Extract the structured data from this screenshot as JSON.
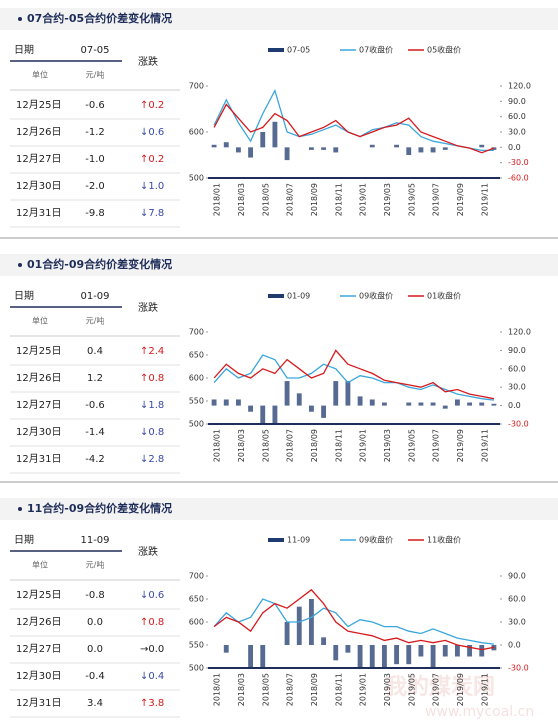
{
  "sections": [
    {
      "title": "07合约-05合约价差变化情况",
      "table": {
        "header": [
          "日期",
          "07-05",
          "涨跌"
        ],
        "units": [
          "单位",
          "元/吨"
        ],
        "rows": [
          [
            "12月25日",
            "-0.6",
            "↑0.2"
          ],
          [
            "12月26日",
            "-1.2",
            "↓0.6"
          ],
          [
            "12月27日",
            "-1.0",
            "↑0.2"
          ],
          [
            "12月30日",
            "-2.0",
            "↓1.0"
          ],
          [
            "12月31日",
            "-9.8",
            "↓7.8"
          ]
        ]
      }
    },
    {
      "title": "01合约-09合约价差变化情况",
      "table": {
        "header": [
          "日期",
          "01-09",
          "涨跌"
        ],
        "units": [
          "单位",
          "元/吨"
        ],
        "rows": [
          [
            "12月25日",
            "0.4",
            "↑2.4"
          ],
          [
            "12月26日",
            "1.2",
            "↑0.8"
          ],
          [
            "12月27日",
            "-0.6",
            "↓1.8"
          ],
          [
            "12月30日",
            "-1.4",
            "↓0.8"
          ],
          [
            "12月31日",
            "-4.2",
            "↓2.8"
          ]
        ]
      }
    },
    {
      "title": "11合约-09合约价差变化情况",
      "table": {
        "header": [
          "日期",
          "11-09",
          "涨跌"
        ],
        "units": [
          "单位",
          "元/吨"
        ],
        "rows": [
          [
            "12月25日",
            "-0.8",
            "↓0.6"
          ],
          [
            "12月26日",
            "0.0",
            "↑0.8"
          ],
          [
            "12月27日",
            "0.0",
            "→0.0"
          ],
          [
            "12月30日",
            "-0.4",
            "↓0.4"
          ],
          [
            "12月31日",
            "3.4",
            "↑3.8"
          ]
        ]
      }
    }
  ],
  "chart_data": [
    {
      "type": "combo",
      "categories": [
        "2018/01",
        null,
        "2018/03",
        null,
        "2018/05",
        null,
        "2018/07",
        null,
        "2018/09",
        null,
        "2018/11",
        null,
        "2019/01",
        null,
        "2019/03",
        null,
        "2019/05",
        null,
        "2019/07",
        null,
        "2019/09",
        null,
        "2019/11",
        null
      ],
      "ylim": [
        500,
        700
      ],
      "yticks": [
        500,
        600,
        700
      ],
      "y2lim": [
        -60,
        120
      ],
      "y2ticks": [
        {
          "value": -60,
          "label": "-60.0"
        },
        {
          "value": -30,
          "label": "-30.0"
        },
        {
          "value": 0,
          "label": "0.0"
        },
        {
          "value": 30,
          "label": "30.0"
        },
        {
          "value": 60,
          "label": "60.0"
        },
        {
          "value": 90,
          "label": "90.0"
        },
        {
          "value": 120,
          "label": "120.0"
        }
      ],
      "series": [
        {
          "name": "07-05",
          "color": "#1f3a6e",
          "type": "bar",
          "axis": "y2",
          "values": [
            5,
            10,
            -10,
            -20,
            30,
            50,
            -25,
            0,
            -5,
            -5,
            -10,
            0,
            0,
            5,
            0,
            5,
            -15,
            -10,
            -10,
            -5,
            0,
            0,
            5,
            -5
          ]
        },
        {
          "name": "07收盘价",
          "color": "#3aa6dd",
          "type": "line",
          "values": [
            615,
            670,
            620,
            580,
            640,
            690,
            600,
            590,
            595,
            605,
            615,
            600,
            590,
            605,
            610,
            620,
            615,
            590,
            580,
            575,
            570,
            565,
            560,
            560
          ]
        },
        {
          "name": "05收盘价",
          "color": "#d7191c",
          "type": "line",
          "values": [
            610,
            660,
            630,
            600,
            610,
            640,
            625,
            590,
            600,
            610,
            625,
            600,
            590,
            600,
            610,
            615,
            630,
            600,
            590,
            580,
            570,
            565,
            555,
            565
          ]
        }
      ]
    },
    {
      "type": "combo",
      "categories": [
        "2018/01",
        null,
        "2018/03",
        null,
        "2018/05",
        null,
        "2018/07",
        null,
        "2018/09",
        null,
        "2018/11",
        null,
        "2019/01",
        null,
        "2019/03",
        null,
        "2019/05",
        null,
        "2019/07",
        null,
        "2019/09",
        null,
        "2019/11",
        null
      ],
      "ylim": [
        500,
        700
      ],
      "yticks": [
        500,
        550,
        600,
        650,
        700
      ],
      "y2lim": [
        -30,
        120
      ],
      "y2ticks": [
        {
          "value": -30,
          "label": "-30.0"
        },
        {
          "value": 0,
          "label": "0.0"
        },
        {
          "value": 30,
          "label": "30.0"
        },
        {
          "value": 60,
          "label": "60.0"
        },
        {
          "value": 90,
          "label": "90.0"
        },
        {
          "value": 120,
          "label": "120.0"
        }
      ],
      "series": [
        {
          "name": "01-09",
          "color": "#1f3a6e",
          "type": "bar",
          "axis": "y2",
          "values": [
            10,
            10,
            10,
            -10,
            -30,
            -30,
            40,
            20,
            -10,
            -20,
            40,
            40,
            15,
            10,
            5,
            0,
            5,
            5,
            5,
            -5,
            10,
            5,
            5,
            3
          ]
        },
        {
          "name": "09收盘价",
          "color": "#3aa6dd",
          "type": "line",
          "values": [
            590,
            620,
            600,
            610,
            650,
            640,
            600,
            600,
            610,
            630,
            620,
            590,
            605,
            600,
            590,
            590,
            580,
            575,
            585,
            575,
            565,
            560,
            555,
            552
          ]
        },
        {
          "name": "01收盘价",
          "color": "#d7191c",
          "type": "line",
          "values": [
            600,
            630,
            610,
            600,
            620,
            610,
            640,
            620,
            600,
            610,
            660,
            630,
            620,
            610,
            595,
            590,
            585,
            580,
            590,
            570,
            575,
            565,
            560,
            555
          ]
        }
      ]
    },
    {
      "type": "combo",
      "categories": [
        "2018/01",
        null,
        "2018/03",
        null,
        "2018/05",
        null,
        "2018/07",
        null,
        "2018/09",
        null,
        "2018/11",
        null,
        "2019/01",
        null,
        "2019/03",
        null,
        "2019/05",
        null,
        "2019/07",
        null,
        "2019/09",
        null,
        "2019/11",
        null
      ],
      "ylim": [
        500,
        700
      ],
      "yticks": [
        500,
        550,
        600,
        650,
        700
      ],
      "y2lim": [
        -30,
        90
      ],
      "y2ticks": [
        {
          "value": -30,
          "label": "-30.0"
        },
        {
          "value": 0,
          "label": "0.0"
        },
        {
          "value": 30,
          "label": "30.0"
        },
        {
          "value": 60,
          "label": "60.0"
        },
        {
          "value": 90,
          "label": "90.0"
        }
      ],
      "series": [
        {
          "name": "11-09",
          "color": "#1f3a6e",
          "type": "bar",
          "axis": "y2",
          "values": [
            0,
            -10,
            0,
            -30,
            -30,
            0,
            30,
            50,
            60,
            10,
            -20,
            -10,
            -30,
            -30,
            -30,
            -25,
            -25,
            -15,
            -30,
            -15,
            -15,
            -15,
            -15,
            -7
          ]
        },
        {
          "name": "09收盘价",
          "color": "#3aa6dd",
          "type": "line",
          "values": [
            590,
            620,
            600,
            610,
            650,
            640,
            600,
            600,
            610,
            630,
            620,
            590,
            605,
            600,
            590,
            590,
            580,
            575,
            585,
            575,
            565,
            560,
            555,
            552
          ]
        },
        {
          "name": "11收盘价",
          "color": "#d7191c",
          "type": "line",
          "values": [
            590,
            610,
            600,
            580,
            620,
            640,
            630,
            650,
            670,
            640,
            600,
            580,
            575,
            570,
            560,
            565,
            555,
            560,
            555,
            560,
            550,
            545,
            540,
            545
          ]
        }
      ]
    }
  ],
  "watermark": {
    "name": "我的煤炭网",
    "url": "www.mycoal.cn"
  }
}
